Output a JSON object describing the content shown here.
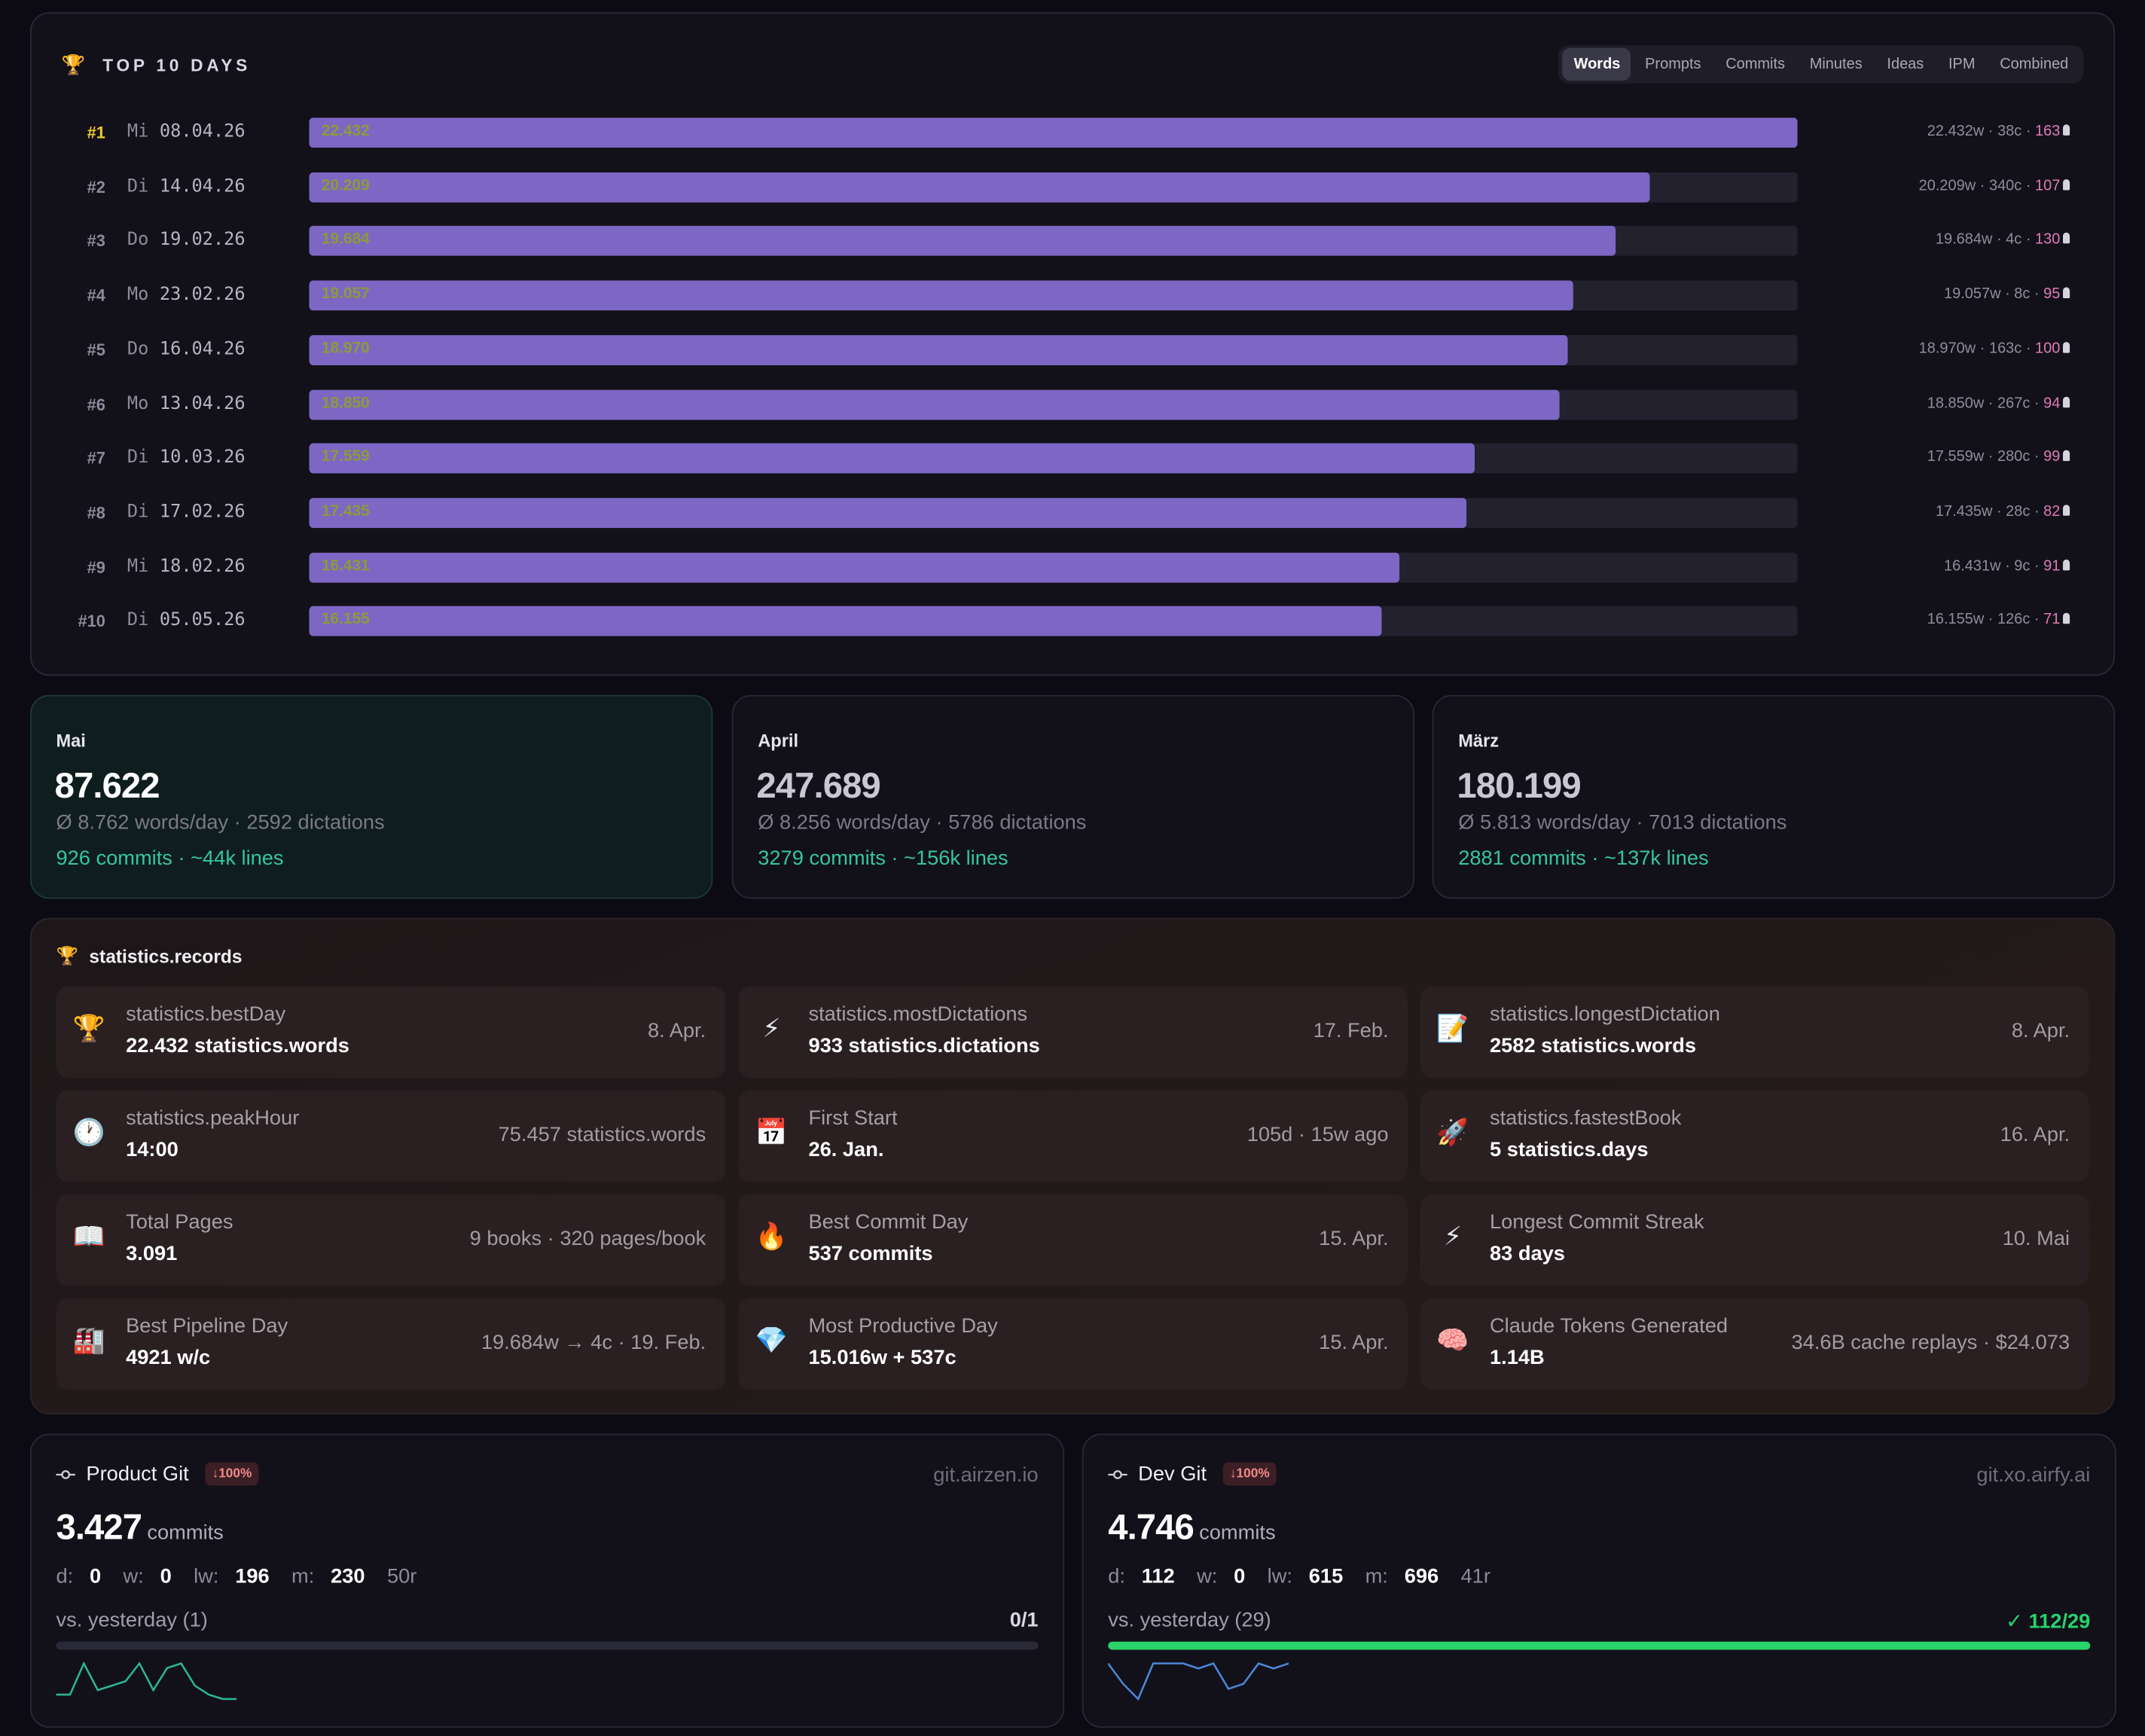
{
  "top10": {
    "title": "TOP 10 DAYS",
    "tabs": [
      {
        "label": "Words",
        "active": true
      },
      {
        "label": "Prompts",
        "active": false
      },
      {
        "label": "Commits",
        "active": false
      },
      {
        "label": "Minutes",
        "active": false
      },
      {
        "label": "Ideas",
        "active": false
      },
      {
        "label": "IPM",
        "active": false
      },
      {
        "label": "Combined",
        "active": false
      }
    ],
    "max_words": 22432,
    "rows": [
      {
        "rank": "#1",
        "weekday": "Mi",
        "date": "08.04.26",
        "value": 22432,
        "value_label": "22.432",
        "meta": "22.432w · 38c · ",
        "ideas": "163"
      },
      {
        "rank": "#2",
        "weekday": "Di",
        "date": "14.04.26",
        "value": 20209,
        "value_label": "20.209",
        "meta": "20.209w · 340c · ",
        "ideas": "107"
      },
      {
        "rank": "#3",
        "weekday": "Do",
        "date": "19.02.26",
        "value": 19684,
        "value_label": "19.684",
        "meta": "19.684w · 4c · ",
        "ideas": "130"
      },
      {
        "rank": "#4",
        "weekday": "Mo",
        "date": "23.02.26",
        "value": 19057,
        "value_label": "19.057",
        "meta": "19.057w · 8c · ",
        "ideas": "95"
      },
      {
        "rank": "#5",
        "weekday": "Do",
        "date": "16.04.26",
        "value": 18970,
        "value_label": "18.970",
        "meta": "18.970w · 163c · ",
        "ideas": "100"
      },
      {
        "rank": "#6",
        "weekday": "Mo",
        "date": "13.04.26",
        "value": 18850,
        "value_label": "18.850",
        "meta": "18.850w · 267c · ",
        "ideas": "94"
      },
      {
        "rank": "#7",
        "weekday": "Di",
        "date": "10.03.26",
        "value": 17559,
        "value_label": "17.559",
        "meta": "17.559w · 280c · ",
        "ideas": "99"
      },
      {
        "rank": "#8",
        "weekday": "Di",
        "date": "17.02.26",
        "value": 17435,
        "value_label": "17.435",
        "meta": "17.435w · 28c · ",
        "ideas": "82"
      },
      {
        "rank": "#9",
        "weekday": "Mi",
        "date": "18.02.26",
        "value": 16431,
        "value_label": "16.431",
        "meta": "16.431w · 9c · ",
        "ideas": "91"
      },
      {
        "rank": "#10",
        "weekday": "Di",
        "date": "05.05.26",
        "value": 16155,
        "value_label": "16.155",
        "meta": "16.155w · 126c · ",
        "ideas": "71"
      }
    ]
  },
  "months": {
    "mai": {
      "name": "Mai",
      "total": "87.622",
      "avg": "Ø 8.762 words/day · 2592 dictations",
      "commits": "926 commits · ~44k lines"
    },
    "april": {
      "name": "April",
      "total": "247.689",
      "avg": "Ø 8.256 words/day · 5786 dictations",
      "commits": "3279 commits · ~156k lines"
    },
    "maerz": {
      "name": "März",
      "total": "180.199",
      "avg": "Ø 5.813 words/day · 7013 dictations",
      "commits": "2881 commits · ~137k lines"
    }
  },
  "records": {
    "title": "statistics.records",
    "cards": [
      {
        "icon": "🏆",
        "icon_name": "trophy-icon",
        "label": "statistics.bestDay",
        "value": "22.432 statistics.words",
        "aside": "8. Apr."
      },
      {
        "icon": "⚡",
        "icon_name": "lightning-icon",
        "label": "statistics.mostDictations",
        "value": "933 statistics.dictations",
        "aside": "17. Feb."
      },
      {
        "icon": "📝",
        "icon_name": "memo-icon",
        "label": "statistics.longestDictation",
        "value": "2582 statistics.words",
        "aside": "8. Apr."
      },
      {
        "icon": "🕐",
        "icon_name": "clock-icon",
        "label": "statistics.peakHour",
        "value": "14:00",
        "aside": "75.457 statistics.words"
      },
      {
        "icon": "📅",
        "icon_name": "calendar-icon",
        "label": "First Start",
        "value": "26. Jan.",
        "aside": "105d · 15w ago"
      },
      {
        "icon": "🚀",
        "icon_name": "rocket-icon",
        "label": "statistics.fastestBook",
        "value": "5 statistics.days",
        "aside": "16. Apr."
      },
      {
        "icon": "📖",
        "icon_name": "book-icon",
        "label": "Total Pages",
        "value": "3.091",
        "aside": "9 books · 320 pages/book"
      },
      {
        "icon": "🔥",
        "icon_name": "fire-icon",
        "label": "Best Commit Day",
        "value": "537 commits",
        "aside": "15. Apr."
      },
      {
        "icon": "⚡",
        "icon_name": "lightning-icon",
        "label": "Longest Commit Streak",
        "value": "83 days",
        "aside": "10. Mai"
      },
      {
        "icon": "🏭",
        "icon_name": "factory-icon",
        "label": "Best Pipeline Day",
        "value": "4921 w/c",
        "aside": "19.684w → 4c · 19. Feb."
      },
      {
        "icon": "💎",
        "icon_name": "gem-icon",
        "label": "Most Productive Day",
        "value": "15.016w + 537c",
        "aside": "15. Apr."
      },
      {
        "icon": "🧠",
        "icon_name": "brain-icon",
        "label": "Claude Tokens Generated",
        "value": "1.14B",
        "aside": "34.6B cache replays · $24.073"
      }
    ]
  },
  "git": {
    "product": {
      "name": "Product Git",
      "badge": "↓100%",
      "host": "git.airzen.io",
      "count": "3.427",
      "unit": "commits",
      "d": "0",
      "w": "0",
      "lw": "196",
      "m": "230",
      "repos": "50r",
      "vs": "vs. yesterday (1)",
      "ratio": "0/1",
      "progress": 0,
      "spark_color": "#2bb594",
      "spark": [
        9,
        9,
        2,
        8,
        7,
        6,
        2,
        8,
        3,
        2,
        7,
        9,
        10,
        10
      ]
    },
    "dev": {
      "name": "Dev Git",
      "badge": "↓100%",
      "host": "git.xo.airfy.ai",
      "count": "4.746",
      "unit": "commits",
      "d": "112",
      "w": "0",
      "lw": "615",
      "m": "696",
      "repos": "41r",
      "vs": "vs. yesterday (29)",
      "ratio": "✓ 112/29",
      "progress": 1,
      "spark_color": "#4b86d8",
      "spark": [
        2,
        6,
        9,
        2,
        2,
        2,
        3,
        2,
        7,
        6,
        2,
        3,
        2
      ]
    }
  },
  "labels": {
    "d": "d:",
    "w": "w:",
    "lw": "lw:",
    "m": "m:"
  },
  "colors": {
    "bar": "#7d67c4",
    "accent_green": "#35c79c",
    "success": "#2ad36a",
    "ideas": "#e07ab7",
    "gold": "#f0c938"
  }
}
